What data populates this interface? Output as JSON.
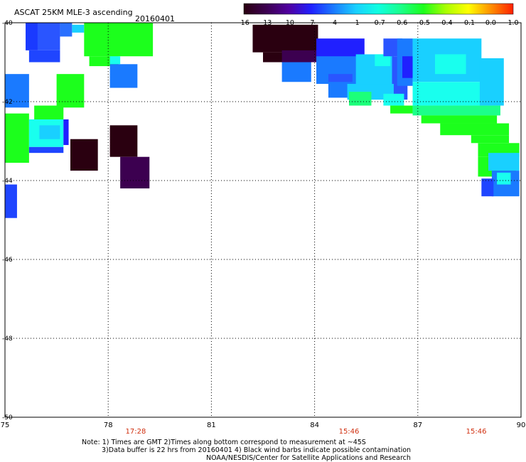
{
  "chart_data": {
    "type": "heatmap",
    "title": "ASCAT 25KM MLE-3 ascending",
    "date": "20160401",
    "colorbar": {
      "ticks": [
        "-16",
        "-13",
        "-10",
        "-7",
        "-4",
        "-1",
        "-0.7",
        "-0.6",
        "-0.5",
        "-0.4",
        "-0.1",
        "0.0",
        "1.0"
      ],
      "colors": [
        "#2a0010",
        "#3c0050",
        "#5000a0",
        "#2020ff",
        "#1a7aff",
        "#19d0ff",
        "#0fffe0",
        "#1aff8a",
        "#1cff1c",
        "#aaff00",
        "#ffff00",
        "#ff9000",
        "#ff2000"
      ]
    },
    "x_ticks": [
      "75",
      "78",
      "81",
      "84",
      "87",
      "90"
    ],
    "y_ticks": [
      "-40",
      "-42",
      "-44",
      "-46",
      "-48",
      "-50"
    ],
    "xlim": [
      75,
      90
    ],
    "ylim": [
      -50,
      -40
    ],
    "grid": true,
    "times": [
      {
        "lon": 78.8,
        "label": "17:28"
      },
      {
        "lon": 85.0,
        "label": "15:46"
      },
      {
        "lon": 88.7,
        "label": "15:46"
      }
    ],
    "time_color": "#d03010",
    "cells": [
      {
        "lon": [
          75.6,
          75.95
        ],
        "lat": [
          -40.0,
          -40.7
        ],
        "c": "#1a3aff"
      },
      {
        "lon": [
          75.95,
          76.6
        ],
        "lat": [
          -40.0,
          -40.7
        ],
        "c": "#2a55ff"
      },
      {
        "lon": [
          75.7,
          76.6
        ],
        "lat": [
          -40.7,
          -41.0
        ],
        "c": "#1f45ff"
      },
      {
        "lon": [
          76.6,
          76.95
        ],
        "lat": [
          -40.0,
          -40.35
        ],
        "c": "#2a70ff"
      },
      {
        "lon": [
          76.95,
          77.3
        ],
        "lat": [
          -40.05,
          -40.25
        ],
        "c": "#19d0ff"
      },
      {
        "lon": [
          77.3,
          79.3
        ],
        "lat": [
          -40.0,
          -40.85
        ],
        "c": "#1cff1c"
      },
      {
        "lon": [
          77.45,
          78.3
        ],
        "lat": [
          -40.85,
          -41.1
        ],
        "c": "#1cff1c"
      },
      {
        "lon": [
          78.05,
          78.35
        ],
        "lat": [
          -40.85,
          -41.05
        ],
        "c": "#19ffee"
      },
      {
        "lon": [
          78.05,
          78.85
        ],
        "lat": [
          -41.05,
          -41.65
        ],
        "c": "#1a7aff"
      },
      {
        "lon": [
          75.0,
          75.7
        ],
        "lat": [
          -41.3,
          -42.15
        ],
        "c": "#1a7aff"
      },
      {
        "lon": [
          76.5,
          77.3
        ],
        "lat": [
          -41.3,
          -42.15
        ],
        "c": "#1cff1c"
      },
      {
        "lon": [
          75.85,
          76.7
        ],
        "lat": [
          -42.1,
          -42.5
        ],
        "c": "#1cff1c"
      },
      {
        "lon": [
          75.0,
          75.7
        ],
        "lat": [
          -42.3,
          -43.55
        ],
        "c": "#1cff1c"
      },
      {
        "lon": [
          75.7,
          76.7
        ],
        "lat": [
          -42.45,
          -43.15
        ],
        "c": "#19ffee"
      },
      {
        "lon": [
          76.0,
          76.6
        ],
        "lat": [
          -42.6,
          -42.95
        ],
        "c": "#19d0ff"
      },
      {
        "lon": [
          75.7,
          76.7
        ],
        "lat": [
          -43.15,
          -43.3
        ],
        "c": "#1f45ff"
      },
      {
        "lon": [
          76.7,
          76.85
        ],
        "lat": [
          -42.45,
          -43.1
        ],
        "c": "#2020ff"
      },
      {
        "lon": [
          76.9,
          77.7
        ],
        "lat": [
          -42.95,
          -43.75
        ],
        "c": "#2a0010"
      },
      {
        "lon": [
          78.05,
          78.85
        ],
        "lat": [
          -42.6,
          -43.4
        ],
        "c": "#2a0010"
      },
      {
        "lon": [
          78.35,
          79.2
        ],
        "lat": [
          -43.4,
          -44.2
        ],
        "c": "#3c0050"
      },
      {
        "lon": [
          75.0,
          75.35
        ],
        "lat": [
          -44.1,
          -44.95
        ],
        "c": "#1f45ff"
      },
      {
        "lon": [
          82.2,
          84.1
        ],
        "lat": [
          -40.05,
          -40.75
        ],
        "c": "#2a0010"
      },
      {
        "lon": [
          82.5,
          83.95
        ],
        "lat": [
          -40.75,
          -41.0
        ],
        "c": "#2a0010"
      },
      {
        "lon": [
          83.05,
          84.1
        ],
        "lat": [
          -40.7,
          -41.0
        ],
        "c": "#3c0050"
      },
      {
        "lon": [
          83.05,
          83.9
        ],
        "lat": [
          -41.0,
          -41.5
        ],
        "c": "#1a7aff"
      },
      {
        "lon": [
          84.05,
          85.45
        ],
        "lat": [
          -40.4,
          -41.3
        ],
        "c": "#2020ff"
      },
      {
        "lon": [
          84.05,
          85.6
        ],
        "lat": [
          -40.85,
          -41.55
        ],
        "c": "#1a7aff"
      },
      {
        "lon": [
          84.4,
          85.1
        ],
        "lat": [
          -41.3,
          -41.7
        ],
        "c": "#2a55ff"
      },
      {
        "lon": [
          84.4,
          85.6
        ],
        "lat": [
          -41.5,
          -41.9
        ],
        "c": "#1a7aff"
      },
      {
        "lon": [
          85.2,
          86.3
        ],
        "lat": [
          -40.8,
          -41.6
        ],
        "c": "#19d0ff"
      },
      {
        "lon": [
          85.75,
          86.2
        ],
        "lat": [
          -40.8,
          -41.1
        ],
        "c": "#19ffee"
      },
      {
        "lon": [
          86.25,
          86.7
        ],
        "lat": [
          -40.85,
          -41.95
        ],
        "c": "#2a55ff"
      },
      {
        "lon": [
          84.95,
          86.3
        ],
        "lat": [
          -41.55,
          -41.95
        ],
        "c": "#19d0ff"
      },
      {
        "lon": [
          85.0,
          85.65
        ],
        "lat": [
          -41.75,
          -42.1
        ],
        "c": "#1cff7a"
      },
      {
        "lon": [
          86.0,
          86.6
        ],
        "lat": [
          -41.8,
          -42.1
        ],
        "c": "#19ffee"
      },
      {
        "lon": [
          86.0,
          86.55
        ],
        "lat": [
          -40.4,
          -40.85
        ],
        "c": "#2a55ff"
      },
      {
        "lon": [
          86.4,
          86.85
        ],
        "lat": [
          -40.4,
          -41.6
        ],
        "c": "#1a7aff"
      },
      {
        "lon": [
          86.55,
          86.95
        ],
        "lat": [
          -40.85,
          -41.4
        ],
        "c": "#2020ff"
      },
      {
        "lon": [
          86.85,
          88.85
        ],
        "lat": [
          -40.4,
          -41.5
        ],
        "c": "#19d0ff"
      },
      {
        "lon": [
          87.5,
          88.4
        ],
        "lat": [
          -40.8,
          -41.3
        ],
        "c": "#19ffee"
      },
      {
        "lon": [
          86.85,
          89.1
        ],
        "lat": [
          -41.5,
          -42.1
        ],
        "c": "#19ffee"
      },
      {
        "lon": [
          88.8,
          89.5
        ],
        "lat": [
          -40.9,
          -42.1
        ],
        "c": "#19d0ff"
      },
      {
        "lon": [
          86.2,
          86.85
        ],
        "lat": [
          -42.1,
          -42.3
        ],
        "c": "#1cff1c"
      },
      {
        "lon": [
          86.85,
          89.4
        ],
        "lat": [
          -42.1,
          -42.35
        ],
        "c": "#1cff8a"
      },
      {
        "lon": [
          87.1,
          89.3
        ],
        "lat": [
          -42.35,
          -42.55
        ],
        "c": "#1cff1c"
      },
      {
        "lon": [
          87.65,
          89.65
        ],
        "lat": [
          -42.55,
          -42.85
        ],
        "c": "#1cff1c"
      },
      {
        "lon": [
          88.55,
          89.65
        ],
        "lat": [
          -42.85,
          -43.05
        ],
        "c": "#1cff1c"
      },
      {
        "lon": [
          88.75,
          89.95
        ],
        "lat": [
          -43.05,
          -43.4
        ],
        "c": "#1cff1c"
      },
      {
        "lon": [
          88.75,
          89.85
        ],
        "lat": [
          -43.4,
          -43.9
        ],
        "c": "#1cff1c"
      },
      {
        "lon": [
          89.05,
          89.95
        ],
        "lat": [
          -43.3,
          -43.75
        ],
        "c": "#19d0ff"
      },
      {
        "lon": [
          89.15,
          89.95
        ],
        "lat": [
          -43.75,
          -44.4
        ],
        "c": "#1a7aff"
      },
      {
        "lon": [
          89.3,
          89.7
        ],
        "lat": [
          -43.8,
          -44.1
        ],
        "c": "#19ffee"
      },
      {
        "lon": [
          88.85,
          89.2
        ],
        "lat": [
          -43.95,
          -44.4
        ],
        "c": "#1f45ff"
      }
    ]
  },
  "notes": {
    "line1": "Note: 1) Times are GMT 2)Times along bottom correspond to measurement at ~45S",
    "line2": "3)Data buffer is 22 hrs from 20160401 4) Black wind barbs indicate possible contamination",
    "line3": "NOAA/NESDIS/Center for Satellite Applications and Research"
  }
}
